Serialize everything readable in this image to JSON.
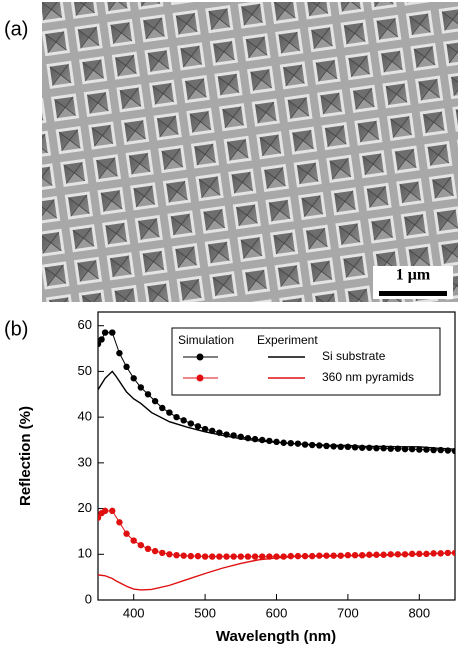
{
  "panel_a": {
    "label": "(a)",
    "scale_bar": "1 μm"
  },
  "chart_data": {
    "type": "line",
    "label": "(b)",
    "x_label": "Wavelength (nm)",
    "y_label": "Reflection (%)",
    "legend_columns": [
      "Simulation",
      "Experiment"
    ],
    "x_simulation": [
      350,
      355,
      360,
      370,
      380,
      390,
      400,
      410,
      420,
      430,
      440,
      450,
      460,
      470,
      480,
      490,
      500,
      510,
      520,
      530,
      540,
      550,
      560,
      570,
      580,
      590,
      600,
      610,
      620,
      630,
      640,
      650,
      660,
      670,
      680,
      690,
      700,
      710,
      720,
      730,
      740,
      750,
      760,
      770,
      780,
      790,
      800,
      810,
      820,
      830,
      840,
      850
    ],
    "x_experiment": [
      350,
      360,
      370,
      375,
      390,
      400,
      410,
      425,
      450,
      475,
      500,
      525,
      550,
      575,
      600,
      625,
      650,
      675,
      700,
      725,
      750,
      775,
      800,
      825,
      850
    ],
    "series": [
      {
        "name": "Si substrate",
        "color": "#000000",
        "simulation": [
          56,
          57,
          58.5,
          58.5,
          54,
          51,
          48.5,
          46.5,
          45,
          43.5,
          42,
          41,
          40,
          39.3,
          38.6,
          38,
          37.4,
          37,
          36.6,
          36.2,
          36,
          35.7,
          35.4,
          35.2,
          35,
          34.8,
          34.6,
          34.4,
          34.3,
          34.2,
          34,
          33.9,
          33.8,
          33.7,
          33.6,
          33.5,
          33.5,
          33.4,
          33.3,
          33.3,
          33.2,
          33.2,
          33.1,
          33.1,
          33,
          33,
          32.9,
          32.9,
          32.8,
          32.8,
          32.7,
          32.6
        ],
        "experiment": [
          46,
          48.5,
          50,
          49,
          45.5,
          44,
          43,
          41,
          39,
          37.8,
          36.8,
          36,
          35.3,
          34.8,
          34.5,
          34.2,
          34,
          33.8,
          33.8,
          33.6,
          33.6,
          33.5,
          33.5,
          33.2,
          33
        ]
      },
      {
        "name": "360 nm pyramids",
        "color": "#e01010",
        "simulation": [
          18,
          19,
          19.5,
          19.5,
          17,
          14.5,
          13,
          12,
          11.2,
          10.7,
          10.3,
          10,
          9.8,
          9.7,
          9.6,
          9.6,
          9.5,
          9.5,
          9.5,
          9.5,
          9.5,
          9.5,
          9.5,
          9.5,
          9.5,
          9.5,
          9.5,
          9.5,
          9.6,
          9.6,
          9.6,
          9.6,
          9.7,
          9.7,
          9.7,
          9.7,
          9.8,
          9.8,
          9.8,
          9.9,
          9.9,
          9.9,
          10,
          10,
          10,
          10.1,
          10.1,
          10.1,
          10.2,
          10.2,
          10.3,
          10.3
        ],
        "experiment": [
          5.5,
          5.3,
          4.7,
          4.2,
          3,
          2.4,
          2.2,
          2.3,
          3.2,
          4.5,
          5.8,
          7,
          8,
          8.8,
          9.2,
          9.5,
          9.6,
          9.6,
          9.7,
          9.7,
          9.8,
          9.9,
          10,
          10.2,
          10.3
        ]
      }
    ],
    "xlim": [
      350,
      850
    ],
    "ylim": [
      0,
      63
    ],
    "xticks": [
      400,
      500,
      600,
      700,
      800
    ],
    "yticks": [
      0,
      10,
      20,
      30,
      40,
      50,
      60
    ]
  }
}
